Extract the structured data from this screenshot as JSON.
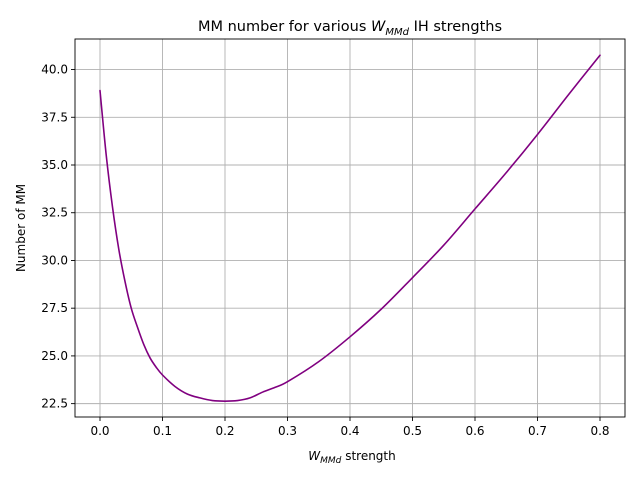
{
  "chart_data": {
    "type": "line",
    "title": {
      "prefix": "MM number for various ",
      "var_base": "W",
      "var_sub": "MMd",
      "suffix": " IH strengths"
    },
    "xlabel": {
      "var_base": "W",
      "var_sub": "MMd",
      "suffix": " strength"
    },
    "ylabel": "Number of MM",
    "xlim": [
      -0.04,
      0.84
    ],
    "ylim": [
      21.8,
      41.6
    ],
    "grid": true,
    "legend": "none",
    "x_ticks": [
      0.0,
      0.1,
      0.2,
      0.3,
      0.4,
      0.5,
      0.6,
      0.7,
      0.8
    ],
    "x_tick_labels": [
      "0.0",
      "0.1",
      "0.2",
      "0.3",
      "0.4",
      "0.5",
      "0.6",
      "0.7",
      "0.8"
    ],
    "y_ticks": [
      22.5,
      25.0,
      27.5,
      30.0,
      32.5,
      35.0,
      37.5,
      40.0
    ],
    "y_tick_labels": [
      "22.5",
      "25.0",
      "27.5",
      "30.0",
      "32.5",
      "35.0",
      "37.5",
      "40.0"
    ],
    "series": [
      {
        "color": "#800080",
        "x": [
          0.0,
          0.01,
          0.02,
          0.03,
          0.04,
          0.05,
          0.06,
          0.07,
          0.08,
          0.09,
          0.1,
          0.12,
          0.14,
          0.16,
          0.18,
          0.2,
          0.22,
          0.24,
          0.26,
          0.28,
          0.3,
          0.35,
          0.4,
          0.45,
          0.5,
          0.55,
          0.6,
          0.65,
          0.7,
          0.75,
          0.8
        ],
        "y": [
          38.9,
          35.5,
          32.8,
          30.6,
          28.9,
          27.5,
          26.5,
          25.6,
          24.9,
          24.4,
          24.0,
          23.4,
          23.0,
          22.8,
          22.66,
          22.63,
          22.66,
          22.8,
          23.1,
          23.35,
          23.65,
          24.7,
          26.0,
          27.45,
          29.1,
          30.8,
          32.7,
          34.6,
          36.6,
          38.7,
          40.75
        ]
      }
    ]
  }
}
